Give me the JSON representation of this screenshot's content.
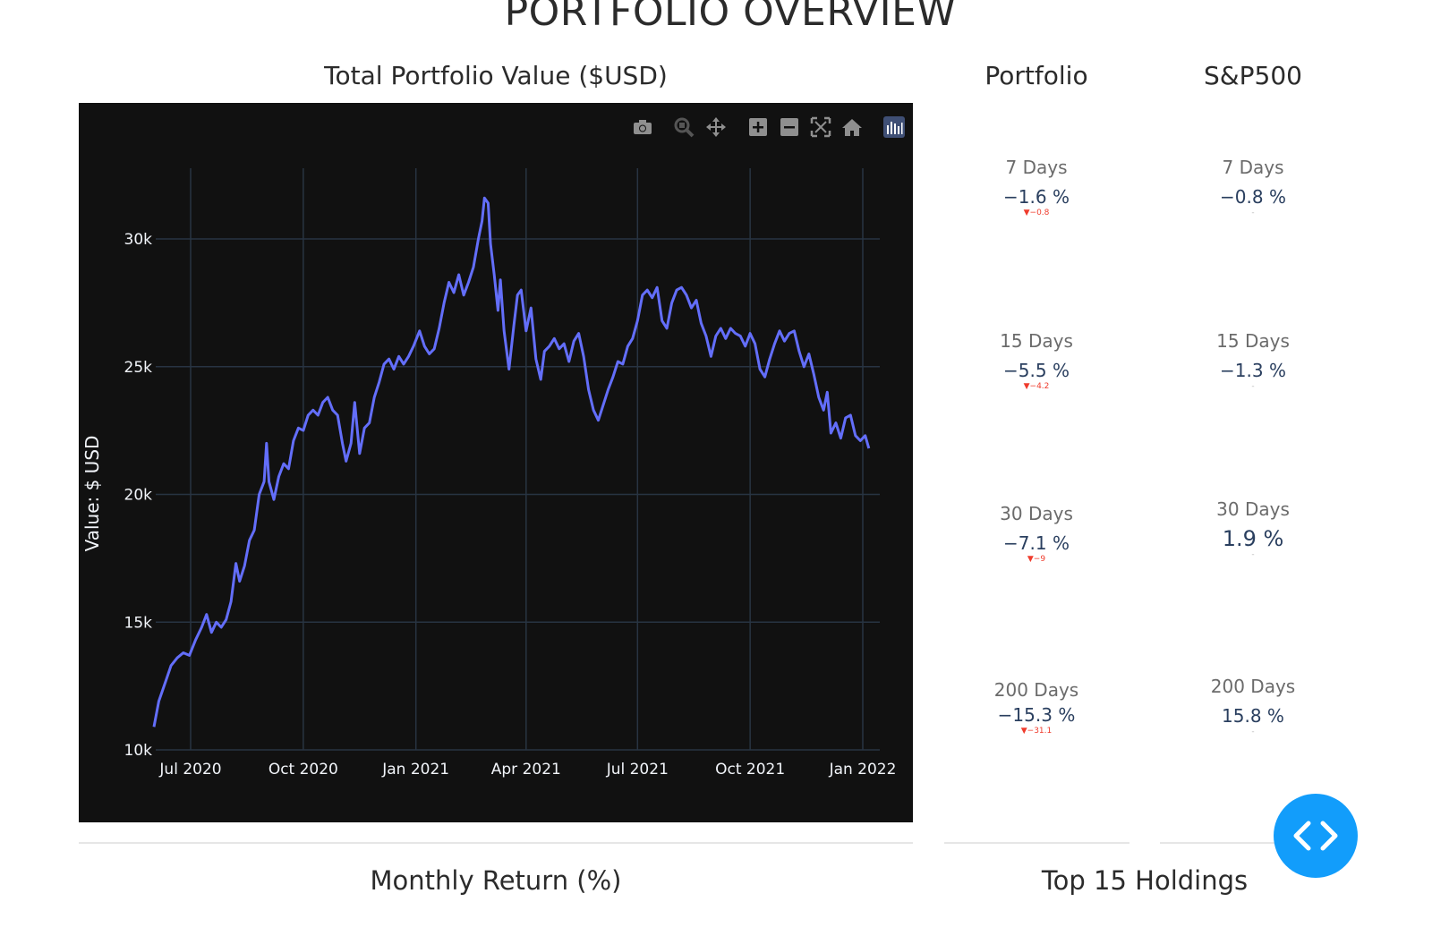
{
  "page": {
    "title": "PORTFOLIO OVERVIEW"
  },
  "columns": {
    "portfolio": "Portfolio",
    "sp500": "S&P500"
  },
  "toolbar": {
    "icons": [
      "camera-icon",
      "zoom-icon",
      "pan-icon",
      "zoom-in-icon",
      "zoom-out-icon",
      "autoscale-icon",
      "reset-axes-icon",
      "plotly-logo-icon"
    ]
  },
  "metrics": {
    "portfolio": [
      {
        "period": "7 Days",
        "value": "−1.6 %",
        "delta": "▼−0.8"
      },
      {
        "period": "15 Days",
        "value": "−5.5 %",
        "delta": "▼−4.2"
      },
      {
        "period": "30 Days",
        "value": "−7.1 %",
        "delta": "▼−9"
      },
      {
        "period": "200 Days",
        "value": "−15.3 %",
        "delta": "▼−31.1"
      }
    ],
    "sp500": [
      {
        "period": "7 Days",
        "value": "−0.8 %",
        "delta": "-"
      },
      {
        "period": "15 Days",
        "value": "−1.3 %",
        "delta": "-"
      },
      {
        "period": "30 Days",
        "value": "1.9 %",
        "delta": "-"
      },
      {
        "period": "200 Days",
        "value": "15.8 %",
        "delta": "-"
      }
    ]
  },
  "sections": {
    "monthly": "Monthly Return (%)",
    "holdings": "Top 15 Holdings"
  },
  "colors": {
    "line": "#636efa",
    "background": "#111111",
    "grid": "#283442",
    "positive_delta": "#3d9970",
    "negative_delta": "#ef3b2c",
    "fab": "#129dfb"
  },
  "chart_data": {
    "type": "line",
    "title": "Total Portfolio Value ($USD)",
    "xlabel": "",
    "ylabel": "Value: $ USD",
    "yticks": [
      10000,
      15000,
      20000,
      25000,
      30000
    ],
    "ytick_labels": [
      "10k",
      "15k",
      "20k",
      "25k",
      "30k"
    ],
    "xticks": [
      "2020-07-01",
      "2020-10-01",
      "2021-01-01",
      "2021-04-01",
      "2021-07-01",
      "2021-10-01",
      "2022-01-01"
    ],
    "xtick_labels": [
      "Jul 2020",
      "Oct 2020",
      "Jan 2021",
      "Apr 2021",
      "Jul 2021",
      "Oct 2021",
      "Jan 2022"
    ],
    "xlim": [
      "2020-06-01",
      "2022-01-15"
    ],
    "ylim": [
      10000,
      32000
    ],
    "grid": true,
    "series": [
      {
        "values": [
          [
            "2020-06-01",
            10900
          ],
          [
            "2020-06-05",
            11900
          ],
          [
            "2020-06-10",
            12600
          ],
          [
            "2020-06-15",
            13300
          ],
          [
            "2020-06-20",
            13600
          ],
          [
            "2020-06-25",
            13800
          ],
          [
            "2020-06-30",
            13700
          ],
          [
            "2020-07-05",
            14300
          ],
          [
            "2020-07-10",
            14800
          ],
          [
            "2020-07-14",
            15300
          ],
          [
            "2020-07-18",
            14600
          ],
          [
            "2020-07-22",
            15000
          ],
          [
            "2020-07-26",
            14800
          ],
          [
            "2020-07-30",
            15100
          ],
          [
            "2020-08-03",
            15800
          ],
          [
            "2020-08-07",
            17300
          ],
          [
            "2020-08-10",
            16600
          ],
          [
            "2020-08-14",
            17200
          ],
          [
            "2020-08-18",
            18200
          ],
          [
            "2020-08-22",
            18600
          ],
          [
            "2020-08-26",
            20000
          ],
          [
            "2020-08-30",
            20500
          ],
          [
            "2020-09-01",
            22000
          ],
          [
            "2020-09-03",
            20500
          ],
          [
            "2020-09-07",
            19800
          ],
          [
            "2020-09-11",
            20700
          ],
          [
            "2020-09-15",
            21200
          ],
          [
            "2020-09-19",
            21000
          ],
          [
            "2020-09-23",
            22100
          ],
          [
            "2020-09-27",
            22600
          ],
          [
            "2020-10-01",
            22500
          ],
          [
            "2020-10-05",
            23100
          ],
          [
            "2020-10-09",
            23300
          ],
          [
            "2020-10-13",
            23100
          ],
          [
            "2020-10-17",
            23600
          ],
          [
            "2020-10-21",
            23800
          ],
          [
            "2020-10-25",
            23300
          ],
          [
            "2020-10-29",
            23100
          ],
          [
            "2020-11-02",
            22000
          ],
          [
            "2020-11-05",
            21300
          ],
          [
            "2020-11-09",
            22000
          ],
          [
            "2020-11-12",
            23600
          ],
          [
            "2020-11-16",
            21600
          ],
          [
            "2020-11-20",
            22600
          ],
          [
            "2020-11-24",
            22800
          ],
          [
            "2020-11-28",
            23800
          ],
          [
            "2020-12-02",
            24400
          ],
          [
            "2020-12-06",
            25100
          ],
          [
            "2020-12-10",
            25300
          ],
          [
            "2020-12-14",
            24900
          ],
          [
            "2020-12-18",
            25400
          ],
          [
            "2020-12-22",
            25100
          ],
          [
            "2020-12-26",
            25400
          ],
          [
            "2020-12-30",
            25800
          ],
          [
            "2021-01-04",
            26400
          ],
          [
            "2021-01-08",
            25800
          ],
          [
            "2021-01-12",
            25500
          ],
          [
            "2021-01-16",
            25700
          ],
          [
            "2021-01-20",
            26500
          ],
          [
            "2021-01-24",
            27500
          ],
          [
            "2021-01-28",
            28300
          ],
          [
            "2021-02-01",
            27900
          ],
          [
            "2021-02-05",
            28600
          ],
          [
            "2021-02-09",
            27800
          ],
          [
            "2021-02-13",
            28300
          ],
          [
            "2021-02-17",
            28900
          ],
          [
            "2021-02-21",
            30000
          ],
          [
            "2021-02-24",
            30700
          ],
          [
            "2021-02-26",
            31600
          ],
          [
            "2021-03-01",
            31400
          ],
          [
            "2021-03-03",
            29800
          ],
          [
            "2021-03-06",
            28600
          ],
          [
            "2021-03-09",
            27200
          ],
          [
            "2021-03-11",
            28400
          ],
          [
            "2021-03-14",
            26400
          ],
          [
            "2021-03-18",
            24900
          ],
          [
            "2021-03-22",
            26600
          ],
          [
            "2021-03-25",
            27800
          ],
          [
            "2021-03-28",
            28000
          ],
          [
            "2021-04-01",
            26400
          ],
          [
            "2021-04-05",
            27300
          ],
          [
            "2021-04-09",
            25300
          ],
          [
            "2021-04-13",
            24500
          ],
          [
            "2021-04-16",
            25600
          ],
          [
            "2021-04-20",
            25800
          ],
          [
            "2021-04-24",
            26100
          ],
          [
            "2021-04-28",
            25700
          ],
          [
            "2021-05-02",
            25900
          ],
          [
            "2021-05-06",
            25200
          ],
          [
            "2021-05-10",
            26000
          ],
          [
            "2021-05-14",
            26300
          ],
          [
            "2021-05-18",
            25400
          ],
          [
            "2021-05-22",
            24100
          ],
          [
            "2021-05-26",
            23300
          ],
          [
            "2021-05-30",
            22900
          ],
          [
            "2021-06-03",
            23500
          ],
          [
            "2021-06-07",
            24100
          ],
          [
            "2021-06-11",
            24600
          ],
          [
            "2021-06-15",
            25200
          ],
          [
            "2021-06-19",
            25100
          ],
          [
            "2021-06-23",
            25800
          ],
          [
            "2021-06-27",
            26100
          ],
          [
            "2021-07-01",
            26800
          ],
          [
            "2021-07-05",
            27800
          ],
          [
            "2021-07-09",
            28000
          ],
          [
            "2021-07-13",
            27700
          ],
          [
            "2021-07-17",
            28100
          ],
          [
            "2021-07-21",
            26800
          ],
          [
            "2021-07-25",
            26500
          ],
          [
            "2021-07-29",
            27500
          ],
          [
            "2021-08-02",
            28000
          ],
          [
            "2021-08-06",
            28100
          ],
          [
            "2021-08-10",
            27800
          ],
          [
            "2021-08-14",
            27300
          ],
          [
            "2021-08-18",
            27600
          ],
          [
            "2021-08-22",
            26700
          ],
          [
            "2021-08-26",
            26200
          ],
          [
            "2021-08-30",
            25400
          ],
          [
            "2021-09-03",
            26200
          ],
          [
            "2021-09-07",
            26500
          ],
          [
            "2021-09-11",
            26100
          ],
          [
            "2021-09-15",
            26500
          ],
          [
            "2021-09-19",
            26300
          ],
          [
            "2021-09-23",
            26200
          ],
          [
            "2021-09-27",
            25800
          ],
          [
            "2021-10-01",
            26300
          ],
          [
            "2021-10-05",
            25900
          ],
          [
            "2021-10-09",
            24900
          ],
          [
            "2021-10-13",
            24600
          ],
          [
            "2021-10-17",
            25300
          ],
          [
            "2021-10-21",
            25900
          ],
          [
            "2021-10-25",
            26400
          ],
          [
            "2021-10-29",
            26000
          ],
          [
            "2021-11-02",
            26300
          ],
          [
            "2021-11-06",
            26400
          ],
          [
            "2021-11-10",
            25600
          ],
          [
            "2021-11-14",
            25000
          ],
          [
            "2021-11-18",
            25500
          ],
          [
            "2021-11-22",
            24700
          ],
          [
            "2021-11-26",
            23800
          ],
          [
            "2021-11-30",
            23300
          ],
          [
            "2021-12-03",
            24000
          ],
          [
            "2021-12-06",
            22400
          ],
          [
            "2021-12-10",
            22800
          ],
          [
            "2021-12-14",
            22200
          ],
          [
            "2021-12-18",
            23000
          ],
          [
            "2021-12-22",
            23100
          ],
          [
            "2021-12-26",
            22300
          ],
          [
            "2021-12-30",
            22100
          ],
          [
            "2022-01-03",
            22300
          ],
          [
            "2022-01-06",
            21800
          ]
        ]
      }
    ]
  }
}
